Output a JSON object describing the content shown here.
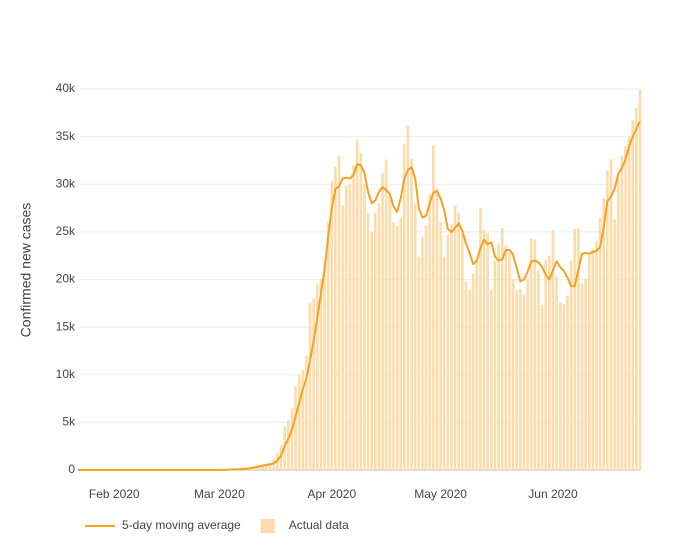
{
  "chart_data": {
    "type": "bar",
    "y_label": "Confirmed new cases",
    "categories": [
      null,
      null,
      null,
      null,
      null,
      null,
      null,
      null,
      null,
      null,
      "Feb 2020",
      null,
      null,
      null,
      null,
      null,
      null,
      null,
      null,
      null,
      null,
      null,
      null,
      null,
      null,
      null,
      null,
      null,
      null,
      null,
      null,
      null,
      null,
      null,
      null,
      null,
      null,
      null,
      null,
      "Mar 2020",
      null,
      null,
      null,
      null,
      null,
      null,
      null,
      null,
      null,
      null,
      null,
      null,
      null,
      null,
      null,
      null,
      null,
      null,
      null,
      null,
      null,
      null,
      null,
      null,
      null,
      null,
      null,
      null,
      null,
      null,
      "Apr 2020",
      null,
      null,
      null,
      null,
      null,
      null,
      null,
      null,
      null,
      null,
      null,
      null,
      null,
      null,
      null,
      null,
      null,
      null,
      null,
      null,
      null,
      null,
      null,
      null,
      null,
      null,
      null,
      null,
      null,
      "May 2020",
      null,
      null,
      null,
      null,
      null,
      null,
      null,
      null,
      null,
      null,
      null,
      null,
      null,
      null,
      null,
      null,
      null,
      null,
      null,
      null,
      null,
      null,
      null,
      null,
      null,
      null,
      null,
      null,
      null,
      null,
      "Jun 2020",
      null,
      null,
      null,
      null,
      null,
      null,
      null,
      null,
      null,
      null,
      null,
      null,
      null,
      null,
      null,
      null,
      null,
      null,
      null,
      null,
      null,
      null,
      null,
      null
    ],
    "series": [
      {
        "name": "5-day moving average",
        "type": "line",
        "color": "#f5a122",
        "values": [
          1,
          1,
          1,
          1,
          1,
          1,
          1,
          1,
          1,
          1,
          1,
          1,
          1,
          1,
          1,
          0,
          0,
          0,
          0,
          0,
          0,
          0,
          0,
          0,
          0,
          0,
          0,
          0,
          0,
          0,
          3,
          3,
          3,
          3,
          3,
          1,
          1,
          3,
          5,
          9,
          15,
          25,
          40,
          60,
          80,
          100,
          130,
          160,
          230,
          300,
          380,
          460,
          530,
          600,
          700,
          1000,
          1500,
          2500,
          3300,
          4200,
          5600,
          7000,
          8500,
          9600,
          11500,
          13600,
          16000,
          18500,
          21000,
          24500,
          27500,
          29500,
          29800,
          30600,
          30700,
          30600,
          31000,
          32100,
          32000,
          31200,
          29200,
          28000,
          28300,
          29200,
          29700,
          29400,
          29000,
          27700,
          27100,
          28500,
          30600,
          31500,
          31800,
          30600,
          27500,
          26500,
          26700,
          28000,
          29100,
          29300,
          28500,
          27300,
          25300,
          25000,
          25400,
          25900,
          25100,
          23800,
          22800,
          21600,
          22000,
          23300,
          24200,
          23700,
          23900,
          22400,
          22000,
          22100,
          23100,
          23100,
          22600,
          21200,
          19800,
          20000,
          20800,
          21900,
          22000,
          21800,
          21300,
          20500,
          20000,
          21000,
          21900,
          21300,
          20900,
          20200,
          19300,
          19300,
          21000,
          22700,
          22800,
          22700,
          22900,
          23000,
          23400,
          25500,
          28200,
          28700,
          29500,
          31100,
          31700,
          32600,
          34000,
          35000,
          35800,
          36600
        ]
      },
      {
        "name": "Actual data",
        "type": "bar",
        "color": "#fcdcaa",
        "values": [
          1,
          0,
          1,
          0,
          3,
          0,
          0,
          1,
          0,
          2,
          1,
          0,
          3,
          0,
          0,
          0,
          1,
          0,
          1,
          0,
          1,
          0,
          0,
          0,
          0,
          0,
          1,
          0,
          0,
          0,
          0,
          14,
          0,
          0,
          0,
          0,
          1,
          4,
          8,
          20,
          15,
          25,
          30,
          60,
          80,
          120,
          110,
          200,
          300,
          400,
          500,
          600,
          700,
          750,
          1100,
          1800,
          2600,
          4600,
          5200,
          6500,
          8800,
          10000,
          10500,
          12000,
          17500,
          18000,
          19500,
          20000,
          22000,
          26000,
          30300,
          31800,
          33000,
          27800,
          29900,
          30000,
          32000,
          34700,
          33300,
          30000,
          27000,
          25000,
          27000,
          28000,
          31200,
          32600,
          29000,
          26000,
          25600,
          26500,
          34200,
          36200,
          32700,
          28000,
          22400,
          24500,
          25700,
          29000,
          34100,
          29500,
          26000,
          22400,
          24700,
          25800,
          27800,
          27000,
          24900,
          19800,
          18900,
          20600,
          22000,
          27500,
          25200,
          24900,
          18900,
          22000,
          23700,
          25400,
          23500,
          22800,
          20000,
          18900,
          19000,
          18400,
          20100,
          24300,
          24200,
          21000,
          17300,
          22000,
          22500,
          25200,
          20300,
          17600,
          17400,
          18300,
          22000,
          25300,
          25400,
          19600,
          20100,
          22800,
          23200,
          24000,
          26500,
          28500,
          31400,
          32600,
          26300,
          30800,
          33000,
          34000,
          35000,
          36700,
          38000,
          39900
        ]
      }
    ],
    "ylim": [
      0,
      40000
    ],
    "yticks": [
      0,
      {
        "value": 5000,
        "label": "5k"
      },
      {
        "value": 10000,
        "label": "10k"
      },
      {
        "value": 15000,
        "label": "15k"
      },
      {
        "value": 20000,
        "label": "20k"
      },
      {
        "value": 25000,
        "label": "25k"
      },
      {
        "value": 30000,
        "label": "30k"
      },
      {
        "value": 35000,
        "label": "35k"
      },
      {
        "value": 40000,
        "label": "40k"
      }
    ],
    "grid": true,
    "legend": "bottom"
  }
}
